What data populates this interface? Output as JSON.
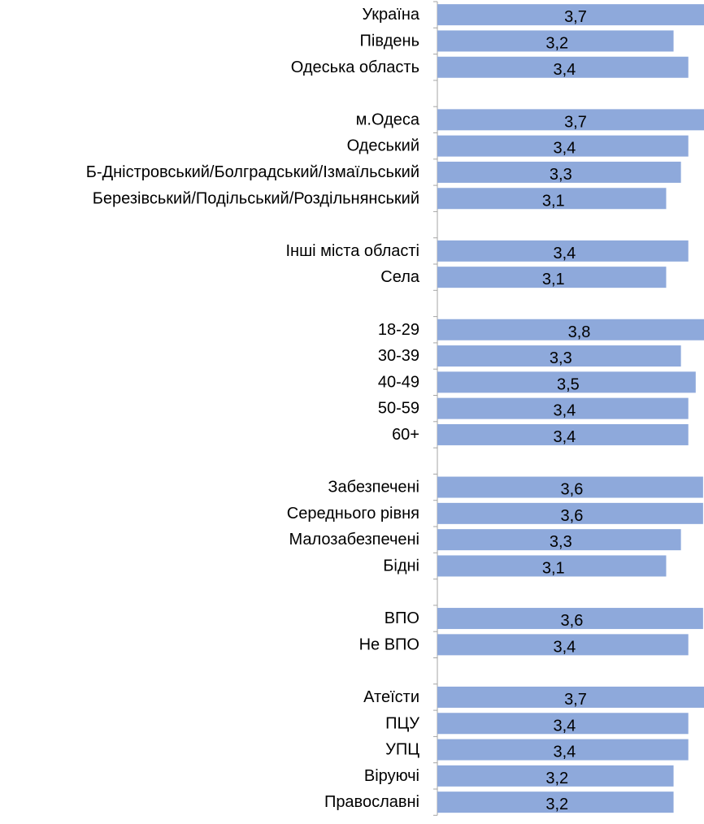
{
  "chart_data": {
    "type": "bar",
    "orientation": "horizontal",
    "title": "",
    "xlabel": "",
    "ylabel": "",
    "grid": false,
    "legend": "none",
    "bar_color": "#8EA9DB",
    "axis_color": "#A6A6A6",
    "groups": [
      {
        "rows": [
          {
            "label": "Україна",
            "value": 3.7,
            "value_label": "3,7"
          },
          {
            "label": "Південь",
            "value": 3.2,
            "value_label": "3,2"
          },
          {
            "label": "Одеська область",
            "value": 3.4,
            "value_label": "3,4"
          }
        ]
      },
      {
        "rows": [
          {
            "label": "м.Одеса",
            "value": 3.7,
            "value_label": "3,7"
          },
          {
            "label": "Одеський",
            "value": 3.4,
            "value_label": "3,4"
          },
          {
            "label": "Б-Дністровський/Болградський/Ізмаїльський",
            "value": 3.3,
            "value_label": "3,3"
          },
          {
            "label": "Березівський/Подільський/Роздільнянський",
            "value": 3.1,
            "value_label": "3,1"
          }
        ]
      },
      {
        "rows": [
          {
            "label": "Інші міста області",
            "value": 3.4,
            "value_label": "3,4"
          },
          {
            "label": "Села",
            "value": 3.1,
            "value_label": "3,1"
          }
        ]
      },
      {
        "rows": [
          {
            "label": "18-29",
            "value": 3.8,
            "value_label": "3,8"
          },
          {
            "label": "30-39",
            "value": 3.3,
            "value_label": "3,3"
          },
          {
            "label": "40-49",
            "value": 3.5,
            "value_label": "3,5"
          },
          {
            "label": "50-59",
            "value": 3.4,
            "value_label": "3,4"
          },
          {
            "label": "60+",
            "value": 3.4,
            "value_label": "3,4"
          }
        ]
      },
      {
        "rows": [
          {
            "label": "Забезпечені",
            "value": 3.6,
            "value_label": "3,6"
          },
          {
            "label": "Середнього рівня",
            "value": 3.6,
            "value_label": "3,6"
          },
          {
            "label": "Малозабезпечені",
            "value": 3.3,
            "value_label": "3,3"
          },
          {
            "label": "Бідні",
            "value": 3.1,
            "value_label": "3,1"
          }
        ]
      },
      {
        "rows": [
          {
            "label": "ВПО",
            "value": 3.6,
            "value_label": "3,6"
          },
          {
            "label": "Не ВПО",
            "value": 3.4,
            "value_label": "3,4"
          }
        ]
      },
      {
        "rows": [
          {
            "label": "Атеїсти",
            "value": 3.7,
            "value_label": "3,7"
          },
          {
            "label": "ПЦУ",
            "value": 3.4,
            "value_label": "3,4"
          },
          {
            "label": "УПЦ",
            "value": 3.4,
            "value_label": "3,4"
          },
          {
            "label": "Віруючі",
            "value": 3.2,
            "value_label": "3,2"
          },
          {
            "label": "Православні",
            "value": 3.2,
            "value_label": "3,2"
          }
        ]
      }
    ]
  }
}
